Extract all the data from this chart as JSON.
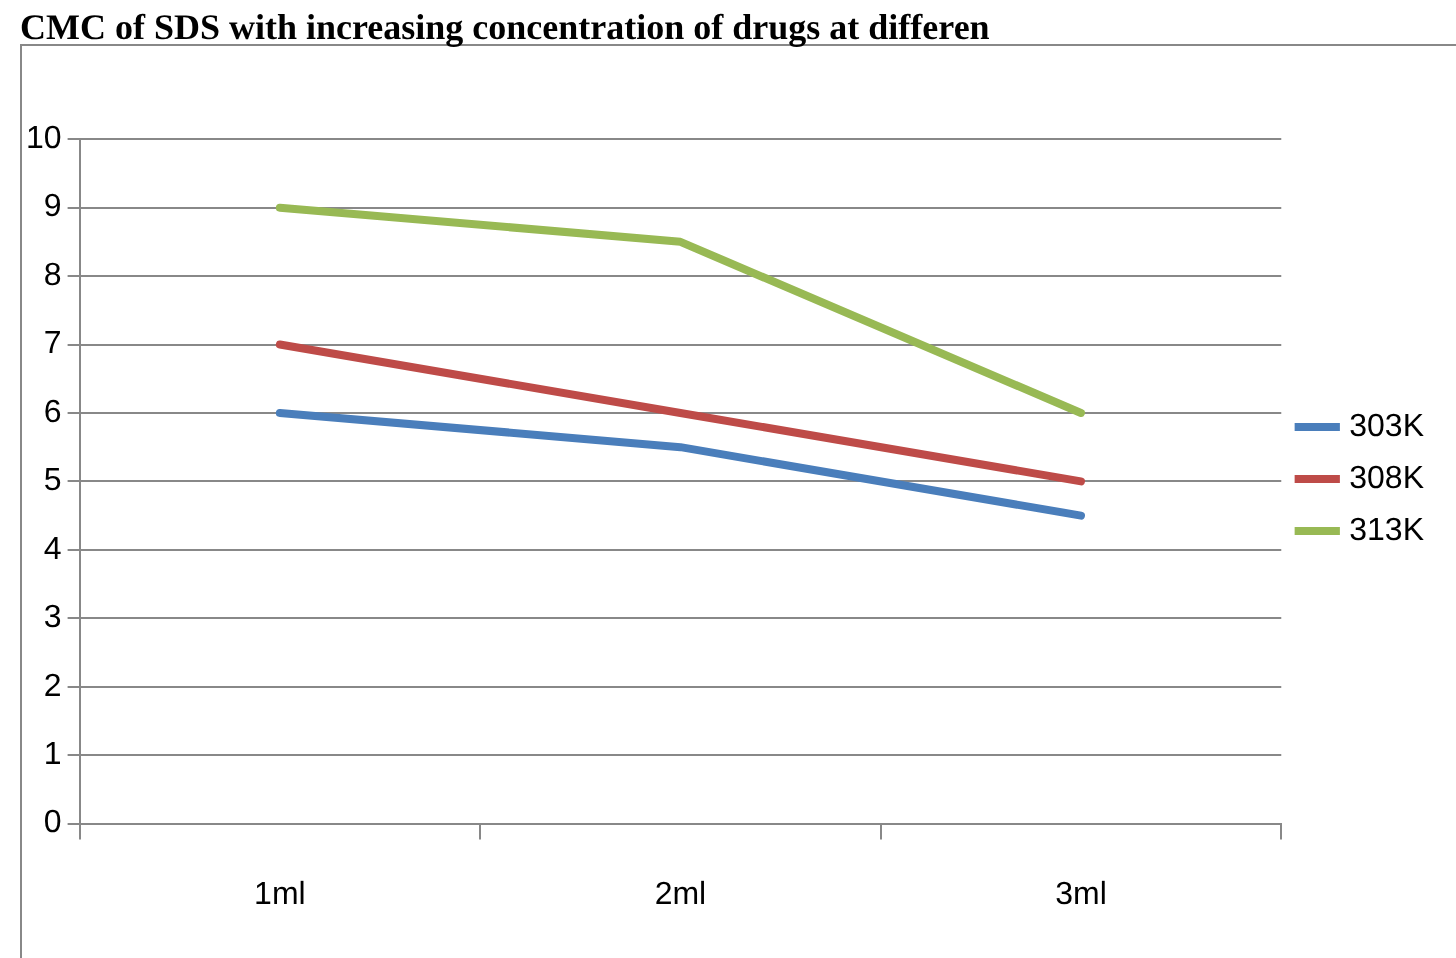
{
  "chart_data": {
    "type": "line",
    "title": "CMC of SDS with increasing concentration of drugs at differen",
    "categories": [
      "1ml",
      "2ml",
      "3ml"
    ],
    "series": [
      {
        "name": "303K",
        "color": "#4a7ebb",
        "values": [
          6,
          5.5,
          4.5
        ]
      },
      {
        "name": "308K",
        "color": "#be4b48",
        "values": [
          7,
          6,
          5
        ]
      },
      {
        "name": "313K",
        "color": "#98b954",
        "values": [
          9,
          8.5,
          6
        ]
      }
    ],
    "ylim": [
      0,
      10
    ],
    "yticks": [
      0,
      1,
      2,
      3,
      4,
      5,
      6,
      7,
      8,
      9,
      10
    ],
    "grid": "y",
    "legend": "right",
    "marker": "none",
    "line_style": "solid"
  }
}
